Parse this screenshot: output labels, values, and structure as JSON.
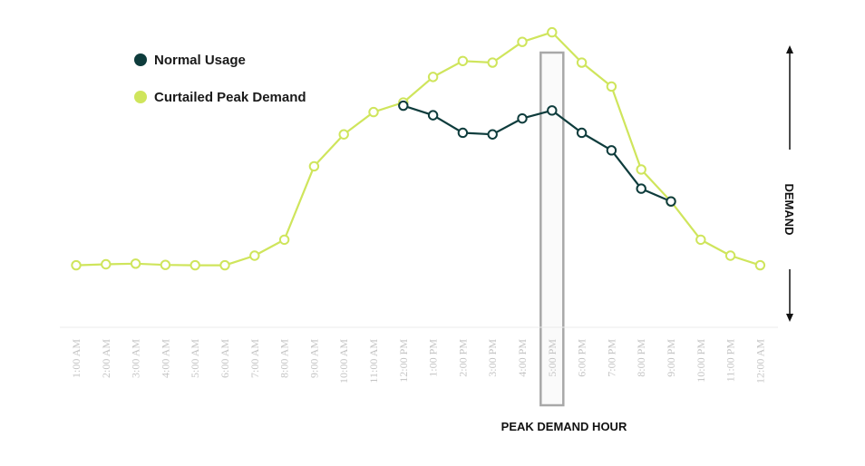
{
  "chart_data": {
    "type": "line",
    "title": "",
    "xlabel": "",
    "ylabel": "DEMAND",
    "categories": [
      "1:00 AM",
      "2:00 AM",
      "3:00 AM",
      "4:00 AM",
      "5:00 AM",
      "6:00 AM",
      "7:00 AM",
      "8:00 AM",
      "9:00 AM",
      "10:00 AM",
      "11:00 AM",
      "12:00 PM",
      "1:00 PM",
      "2:00 PM",
      "3:00 PM",
      "4:00 PM",
      "5:00 PM",
      "6:00 PM",
      "7:00 PM",
      "8:00 PM",
      "9:00 PM",
      "10:00 PM",
      "11:00 PM",
      "12:00 AM"
    ],
    "ylim": [
      0,
      100
    ],
    "grid": false,
    "legend_position": "top-left",
    "series": [
      {
        "name": "Normal Usage",
        "color": "#0e3c3c",
        "values": [
          null,
          null,
          null,
          null,
          null,
          null,
          null,
          null,
          null,
          null,
          null,
          72,
          69,
          63.5,
          63,
          68,
          70.5,
          63.5,
          58,
          46,
          42,
          null,
          null,
          null
        ]
      },
      {
        "name": "Curtailed Peak Demand",
        "color": "#cfe55c",
        "values": [
          22,
          22.3,
          22.5,
          22.1,
          22,
          22,
          25,
          30,
          53,
          63,
          70,
          73,
          81,
          86,
          85.5,
          92,
          95,
          85.5,
          78,
          52,
          42,
          30,
          25,
          22
        ]
      }
    ],
    "annotations": {
      "highlight_category": "5:00 PM",
      "highlight_label": "PEAK DEMAND HOUR"
    }
  }
}
